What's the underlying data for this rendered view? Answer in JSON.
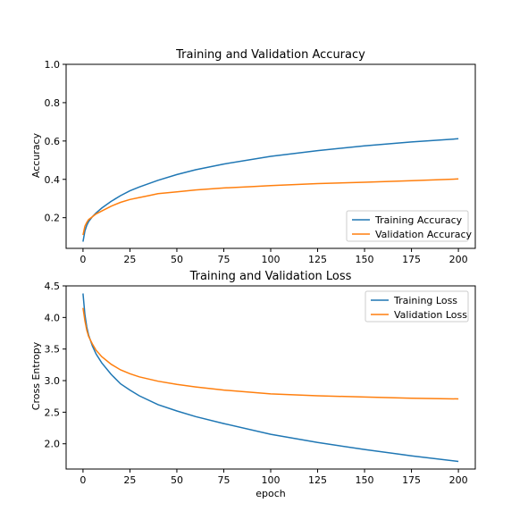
{
  "chart_data": [
    {
      "type": "line",
      "title": "Training and Validation Accuracy",
      "xlabel": "",
      "ylabel": "Accuracy",
      "xlim": [
        -9,
        209
      ],
      "ylim": [
        0.04,
        1.0
      ],
      "xticks": [
        0,
        25,
        50,
        75,
        100,
        125,
        150,
        175,
        200
      ],
      "xtick_labels": [
        "0",
        "25",
        "50",
        "75",
        "100",
        "125",
        "150",
        "175",
        "200"
      ],
      "yticks": [
        0.2,
        0.4,
        0.6,
        0.8,
        1.0
      ],
      "ytick_labels": [
        "0.2",
        "0.4",
        "0.6",
        "0.8",
        "1.0"
      ],
      "grid": false,
      "legend_position": "lower right",
      "series": [
        {
          "name": "Training Accuracy",
          "color": "#1f77b4",
          "x": [
            0,
            1,
            2,
            3,
            5,
            7,
            10,
            15,
            20,
            25,
            30,
            40,
            50,
            60,
            75,
            100,
            125,
            150,
            175,
            200
          ],
          "y": [
            0.075,
            0.13,
            0.16,
            0.18,
            0.205,
            0.225,
            0.25,
            0.285,
            0.315,
            0.34,
            0.36,
            0.395,
            0.425,
            0.45,
            0.48,
            0.52,
            0.55,
            0.575,
            0.595,
            0.612
          ]
        },
        {
          "name": "Validation Accuracy",
          "color": "#ff7f0e",
          "x": [
            0,
            1,
            2,
            3,
            5,
            7,
            10,
            15,
            20,
            25,
            30,
            35,
            40,
            50,
            60,
            75,
            90,
            100,
            125,
            150,
            175,
            200
          ],
          "y": [
            0.11,
            0.155,
            0.175,
            0.19,
            0.205,
            0.22,
            0.235,
            0.26,
            0.28,
            0.295,
            0.305,
            0.315,
            0.325,
            0.335,
            0.345,
            0.355,
            0.362,
            0.367,
            0.378,
            0.385,
            0.393,
            0.402
          ]
        }
      ]
    },
    {
      "type": "line",
      "title": "Training and Validation Loss",
      "xlabel": "epoch",
      "ylabel": "Cross Entropy",
      "xlim": [
        -9,
        209
      ],
      "ylim": [
        1.6,
        4.5
      ],
      "xticks": [
        0,
        25,
        50,
        75,
        100,
        125,
        150,
        175,
        200
      ],
      "xtick_labels": [
        "0",
        "25",
        "50",
        "75",
        "100",
        "125",
        "150",
        "175",
        "200"
      ],
      "yticks": [
        2.0,
        2.5,
        3.0,
        3.5,
        4.0,
        4.5
      ],
      "ytick_labels": [
        "2.0",
        "2.5",
        "3.0",
        "3.5",
        "4.0",
        "4.5"
      ],
      "grid": false,
      "legend_position": "upper right",
      "series": [
        {
          "name": "Training Loss",
          "color": "#1f77b4",
          "x": [
            0,
            1,
            2,
            3,
            5,
            7,
            10,
            15,
            20,
            25,
            30,
            40,
            50,
            60,
            75,
            100,
            125,
            150,
            175,
            200
          ],
          "y": [
            4.38,
            4.05,
            3.85,
            3.72,
            3.55,
            3.42,
            3.28,
            3.1,
            2.95,
            2.85,
            2.76,
            2.62,
            2.52,
            2.43,
            2.32,
            2.15,
            2.02,
            1.91,
            1.81,
            1.72
          ]
        },
        {
          "name": "Validation Loss",
          "color": "#ff7f0e",
          "x": [
            0,
            1,
            2,
            3,
            5,
            7,
            10,
            15,
            20,
            25,
            30,
            40,
            50,
            60,
            75,
            100,
            125,
            150,
            175,
            200
          ],
          "y": [
            4.15,
            3.95,
            3.8,
            3.7,
            3.58,
            3.48,
            3.38,
            3.26,
            3.17,
            3.11,
            3.06,
            2.99,
            2.94,
            2.9,
            2.85,
            2.79,
            2.76,
            2.74,
            2.72,
            2.71
          ]
        }
      ]
    }
  ]
}
